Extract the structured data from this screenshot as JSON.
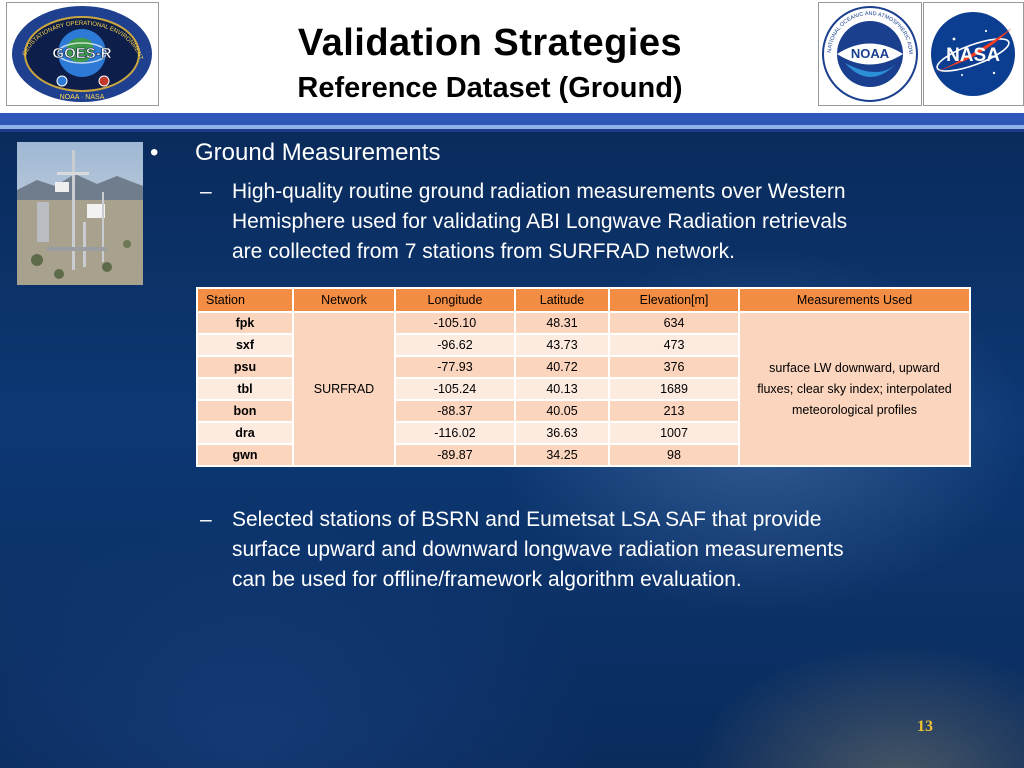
{
  "header": {
    "title": "Validation Strategies",
    "subtitle": "Reference Dataset (Ground)",
    "goes_logo": {
      "center_text": "GOES-R",
      "ring_top": "GEOSTATIONARY OPERATIONAL ENVIRONMENTAL SATELLITE · R SERIES",
      "ring_bottom": "NOAA · NASA"
    },
    "noaa_logo": {
      "center_text": "NOAA",
      "ring_text": "NATIONAL OCEANIC AND ATMOSPHERIC ADMINISTRATION · U.S. DEPARTMENT OF COMMERCE"
    },
    "nasa_logo": {
      "text": "NASA"
    }
  },
  "content": {
    "bullet": "•",
    "dash": "–",
    "heading": "Ground Measurements",
    "para1_lines": [
      "High-quality routine ground radiation measurements over Western",
      "Hemisphere used for validating ABI Longwave Radiation retrievals",
      "are collected from 7 stations from SURFRAD network."
    ],
    "para2_lines": [
      "Selected stations of BSRN and Eumetsat LSA SAF that provide",
      "surface upward and downward longwave radiation measurements",
      "can be used for offline/framework algorithm evaluation."
    ]
  },
  "table": {
    "headers": [
      "Station",
      "Network",
      "Longitude",
      "Latitude",
      "Elevation[m]",
      "Measurements Used"
    ],
    "network": "SURFRAD",
    "measurements_lines": [
      "surface LW downward, upward",
      "fluxes; clear sky index; interpolated",
      "meteorological profiles"
    ],
    "rows": [
      {
        "station": "fpk",
        "longitude": "-105.10",
        "latitude": "48.31",
        "elevation": "634"
      },
      {
        "station": "sxf",
        "longitude": "-96.62",
        "latitude": "43.73",
        "elevation": "473"
      },
      {
        "station": "psu",
        "longitude": "-77.93",
        "latitude": "40.72",
        "elevation": "376"
      },
      {
        "station": "tbl",
        "longitude": "-105.24",
        "latitude": "40.13",
        "elevation": "1689"
      },
      {
        "station": "bon",
        "longitude": "-88.37",
        "latitude": "40.05",
        "elevation": "213"
      },
      {
        "station": "dra",
        "longitude": "-116.02",
        "latitude": "36.63",
        "elevation": "1007"
      },
      {
        "station": "gwn",
        "longitude": "-89.87",
        "latitude": "34.25",
        "elevation": "98"
      }
    ]
  },
  "footer": {
    "page_number": "13"
  },
  "colors": {
    "header_bar": "#2f56b9",
    "table_header": "#f38d43",
    "table_row_odd": "#fbd5bd",
    "table_row_even": "#fdebe0",
    "page_number": "#f1c232"
  }
}
